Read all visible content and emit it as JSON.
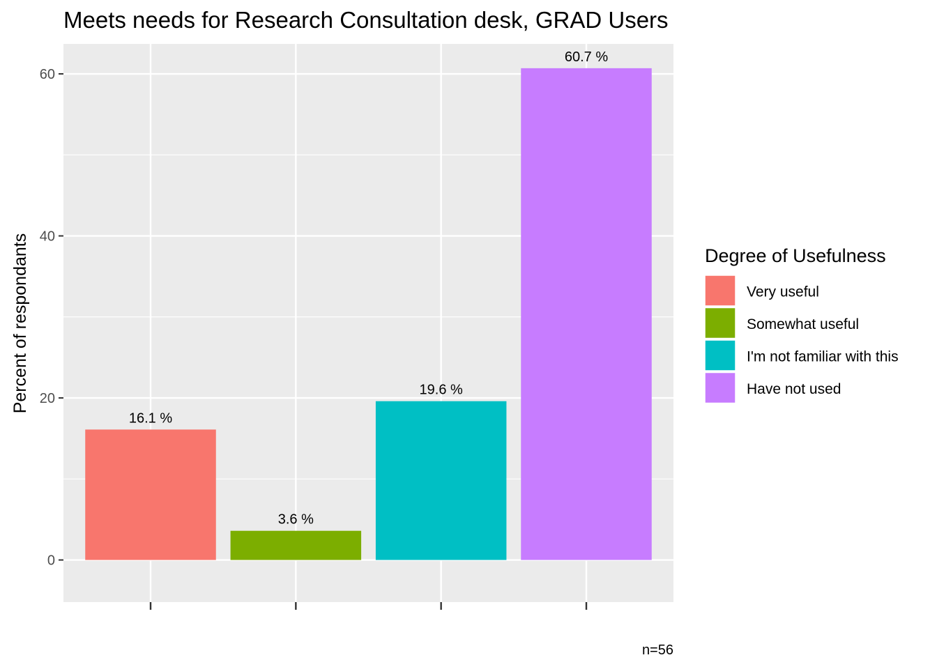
{
  "chart_data": {
    "type": "bar",
    "title": "Meets needs for Research Consultation desk,  GRAD Users",
    "xlabel": "",
    "ylabel": "Percent of respondants",
    "categories": [
      "Very useful",
      "Somewhat useful",
      "I'm not familiar with this",
      "Have not used"
    ],
    "values": [
      16.1,
      3.6,
      19.6,
      60.7
    ],
    "data_labels": [
      "16.1 %",
      "3.6 %",
      "19.6 %",
      "60.7 %"
    ],
    "colors": [
      "#F8766D",
      "#7CAE00",
      "#00BFC4",
      "#C77CFF"
    ],
    "ylim": [
      -5.2,
      63.7
    ],
    "y_ticks": [
      0,
      20,
      40,
      60
    ],
    "y_tick_labels": [
      "0",
      "20",
      "40",
      "60"
    ],
    "grid": true,
    "legend": {
      "title": "Degree of Usefulness",
      "position": "right",
      "entries": [
        "Very useful",
        "Somewhat useful",
        "I'm not familiar with this",
        "Have not used"
      ]
    },
    "caption": "n=56"
  }
}
